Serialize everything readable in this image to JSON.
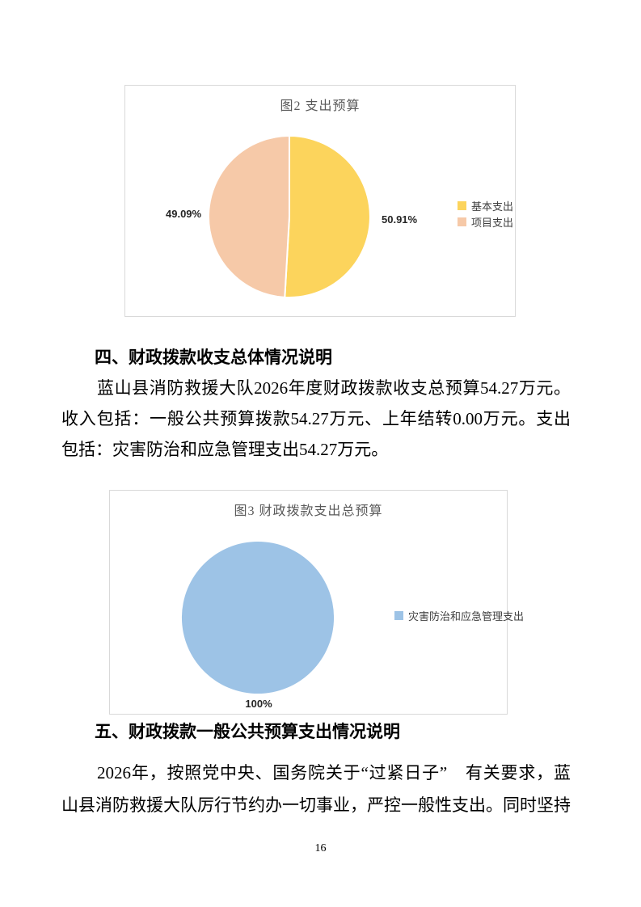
{
  "page": {
    "number": "16"
  },
  "section4": {
    "heading": "四、财政拨款收支总体情况说明",
    "paragraph_lines": [
      "蓝山县消防救援大队2026年度财政拨款收支总预算54.27万元。",
      "收入包括：一般公共预算拨款54.27万元、上年结转0.00万元。支出",
      "包括：灾害防治和应急管理支出54.27万元。"
    ]
  },
  "section5": {
    "heading": "五、财政拨款一般公共预算支出情况说明",
    "paragraph_lines": [
      "2026年，按照党中央、国务院关于“过紧日子”　有关要求，蓝",
      "山县消防救援大队厉行节约办一切事业，严控一般性支出。同时坚持"
    ]
  },
  "chart_data": [
    {
      "type": "pie",
      "title": "图2 支出预算",
      "start_angle_deg": 0,
      "legend_position": "right",
      "series": [
        {
          "name": "基本支出",
          "value": 50.91,
          "label": "50.91%",
          "color": "#FCD45C"
        },
        {
          "name": "项目支出",
          "value": 49.09,
          "label": "49.09%",
          "color": "#F6C9A8"
        }
      ]
    },
    {
      "type": "pie",
      "title": "图3 财政拨款支出总预算",
      "start_angle_deg": 0,
      "legend_position": "right",
      "series": [
        {
          "name": "灾害防治和应急管理支出",
          "value": 100,
          "label": "100%",
          "color": "#9DC3E6"
        }
      ]
    }
  ]
}
